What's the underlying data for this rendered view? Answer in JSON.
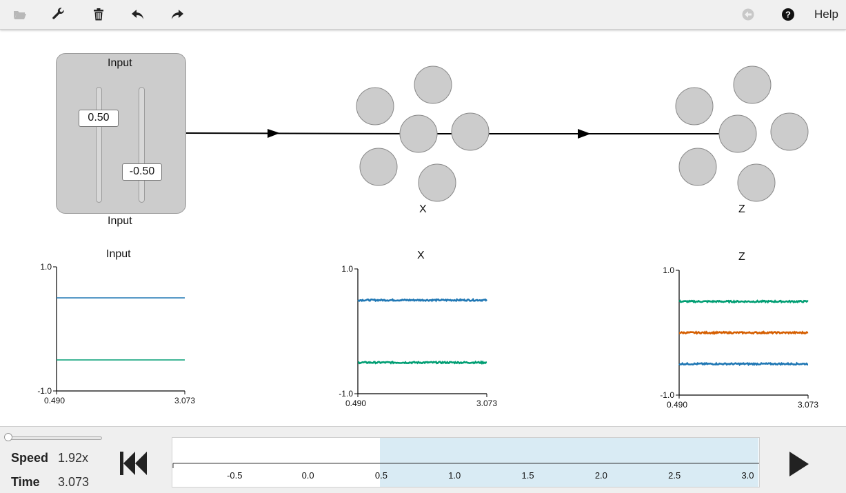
{
  "toolbar": {
    "icons": [
      "folder-open-icon",
      "wrench-icon",
      "trash-icon",
      "undo-icon",
      "redo-icon",
      "back-circle-icon",
      "help-circle-icon"
    ],
    "help_label": "Help"
  },
  "network": {
    "input_node": {
      "title": "Input",
      "label": "Input",
      "slider_values": [
        "0.50",
        "-0.50"
      ],
      "slider_levels": [
        0.5,
        -0.5
      ]
    },
    "ensembles": [
      {
        "label": "X",
        "neurons": 6
      },
      {
        "label": "Z",
        "neurons": 6
      }
    ]
  },
  "chart_data": [
    {
      "type": "line",
      "title": "Input",
      "x": [
        0.49,
        3.073
      ],
      "xticks": [
        "0.490",
        "3.073"
      ],
      "yticks": [
        "1.0",
        "-1.0"
      ],
      "ylim": [
        -1.0,
        1.0
      ],
      "series": [
        {
          "color": "#1f77b4",
          "values": [
            0.5,
            0.5
          ],
          "noise": 0.0
        },
        {
          "color": "#009e73",
          "values": [
            -0.5,
            -0.5
          ],
          "noise": 0.0
        }
      ]
    },
    {
      "type": "line",
      "title": "X",
      "x": [
        0.49,
        3.073
      ],
      "xticks": [
        "0.490",
        "3.073"
      ],
      "yticks": [
        "1.0",
        "-1.0"
      ],
      "ylim": [
        -1.0,
        1.0
      ],
      "series": [
        {
          "color": "#1f77b4",
          "values": [
            0.5,
            0.5
          ],
          "noise": 0.012
        },
        {
          "color": "#009e73",
          "values": [
            -0.5,
            -0.5
          ],
          "noise": 0.012
        }
      ]
    },
    {
      "type": "line",
      "title": "Z",
      "x": [
        0.49,
        3.073
      ],
      "xticks": [
        "0.490",
        "3.073"
      ],
      "yticks": [
        "1.0",
        "-1.0"
      ],
      "ylim": [
        -1.0,
        1.0
      ],
      "series": [
        {
          "color": "#009e73",
          "values": [
            0.5,
            0.5
          ],
          "noise": 0.012
        },
        {
          "color": "#d55e00",
          "values": [
            0.0,
            0.0
          ],
          "noise": 0.012
        },
        {
          "color": "#1f77b4",
          "values": [
            -0.5,
            -0.5
          ],
          "noise": 0.012
        }
      ]
    }
  ],
  "controls": {
    "speed_label": "Speed",
    "speed_value": "1.92x",
    "time_label": "Time",
    "time_value": "3.073",
    "timeline_ticks": [
      "-0.5",
      "0.0",
      "0.5",
      "1.0",
      "1.5",
      "2.0",
      "2.5",
      "3.0"
    ],
    "timeline_range": [
      -0.92,
      3.073
    ],
    "timeline_window": [
      0.49,
      3.073
    ]
  }
}
